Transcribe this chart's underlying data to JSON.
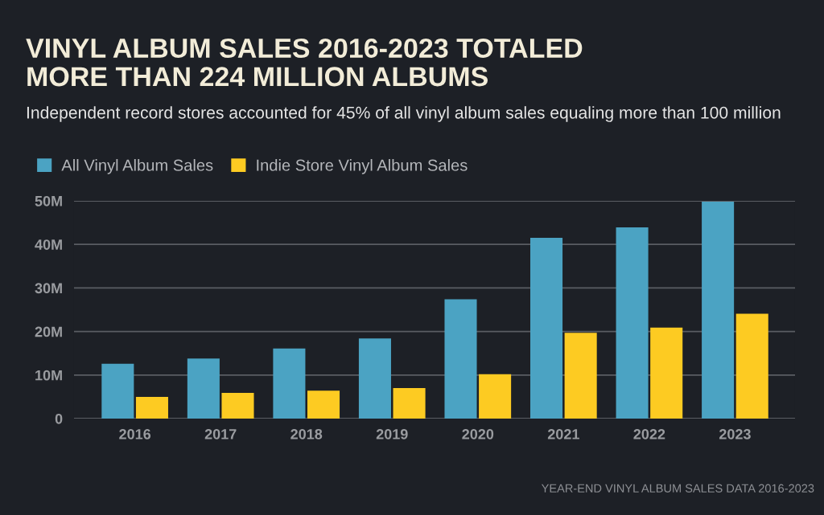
{
  "chart_data": {
    "type": "bar",
    "title": "VINYL ALBUM SALES 2016-2023 TOTALED\nMORE THAN 224 MILLION ALBUMS",
    "subtitle": "Independent record stores accounted for 45% of all vinyl album sales equaling more than 100 million",
    "categories": [
      "2016",
      "2017",
      "2018",
      "2019",
      "2020",
      "2021",
      "2022",
      "2023"
    ],
    "series": [
      {
        "name": "All Vinyl Album Sales",
        "color": "#4ba3c3",
        "values": [
          12.6,
          13.8,
          16.1,
          18.4,
          27.4,
          41.5,
          43.9,
          49.8
        ]
      },
      {
        "name": "Indie Store Vinyl Album Sales",
        "color": "#fdcb22",
        "values": [
          5.0,
          5.9,
          6.4,
          7.0,
          10.2,
          19.7,
          20.9,
          24.1
        ]
      }
    ],
    "ylim": [
      0,
      50
    ],
    "yticks": [
      0,
      {
        "value": 10,
        "label": "10M"
      },
      {
        "value": 20,
        "label": "20M"
      },
      {
        "value": 30,
        "label": "30M"
      },
      {
        "value": 40,
        "label": "40M"
      },
      {
        "value": 50,
        "label": "50M"
      }
    ],
    "grid": "y",
    "legend": "top left",
    "annotations": [
      "YEAR-END VINYL ALBUM SALES DATA 2016-2023"
    ]
  }
}
